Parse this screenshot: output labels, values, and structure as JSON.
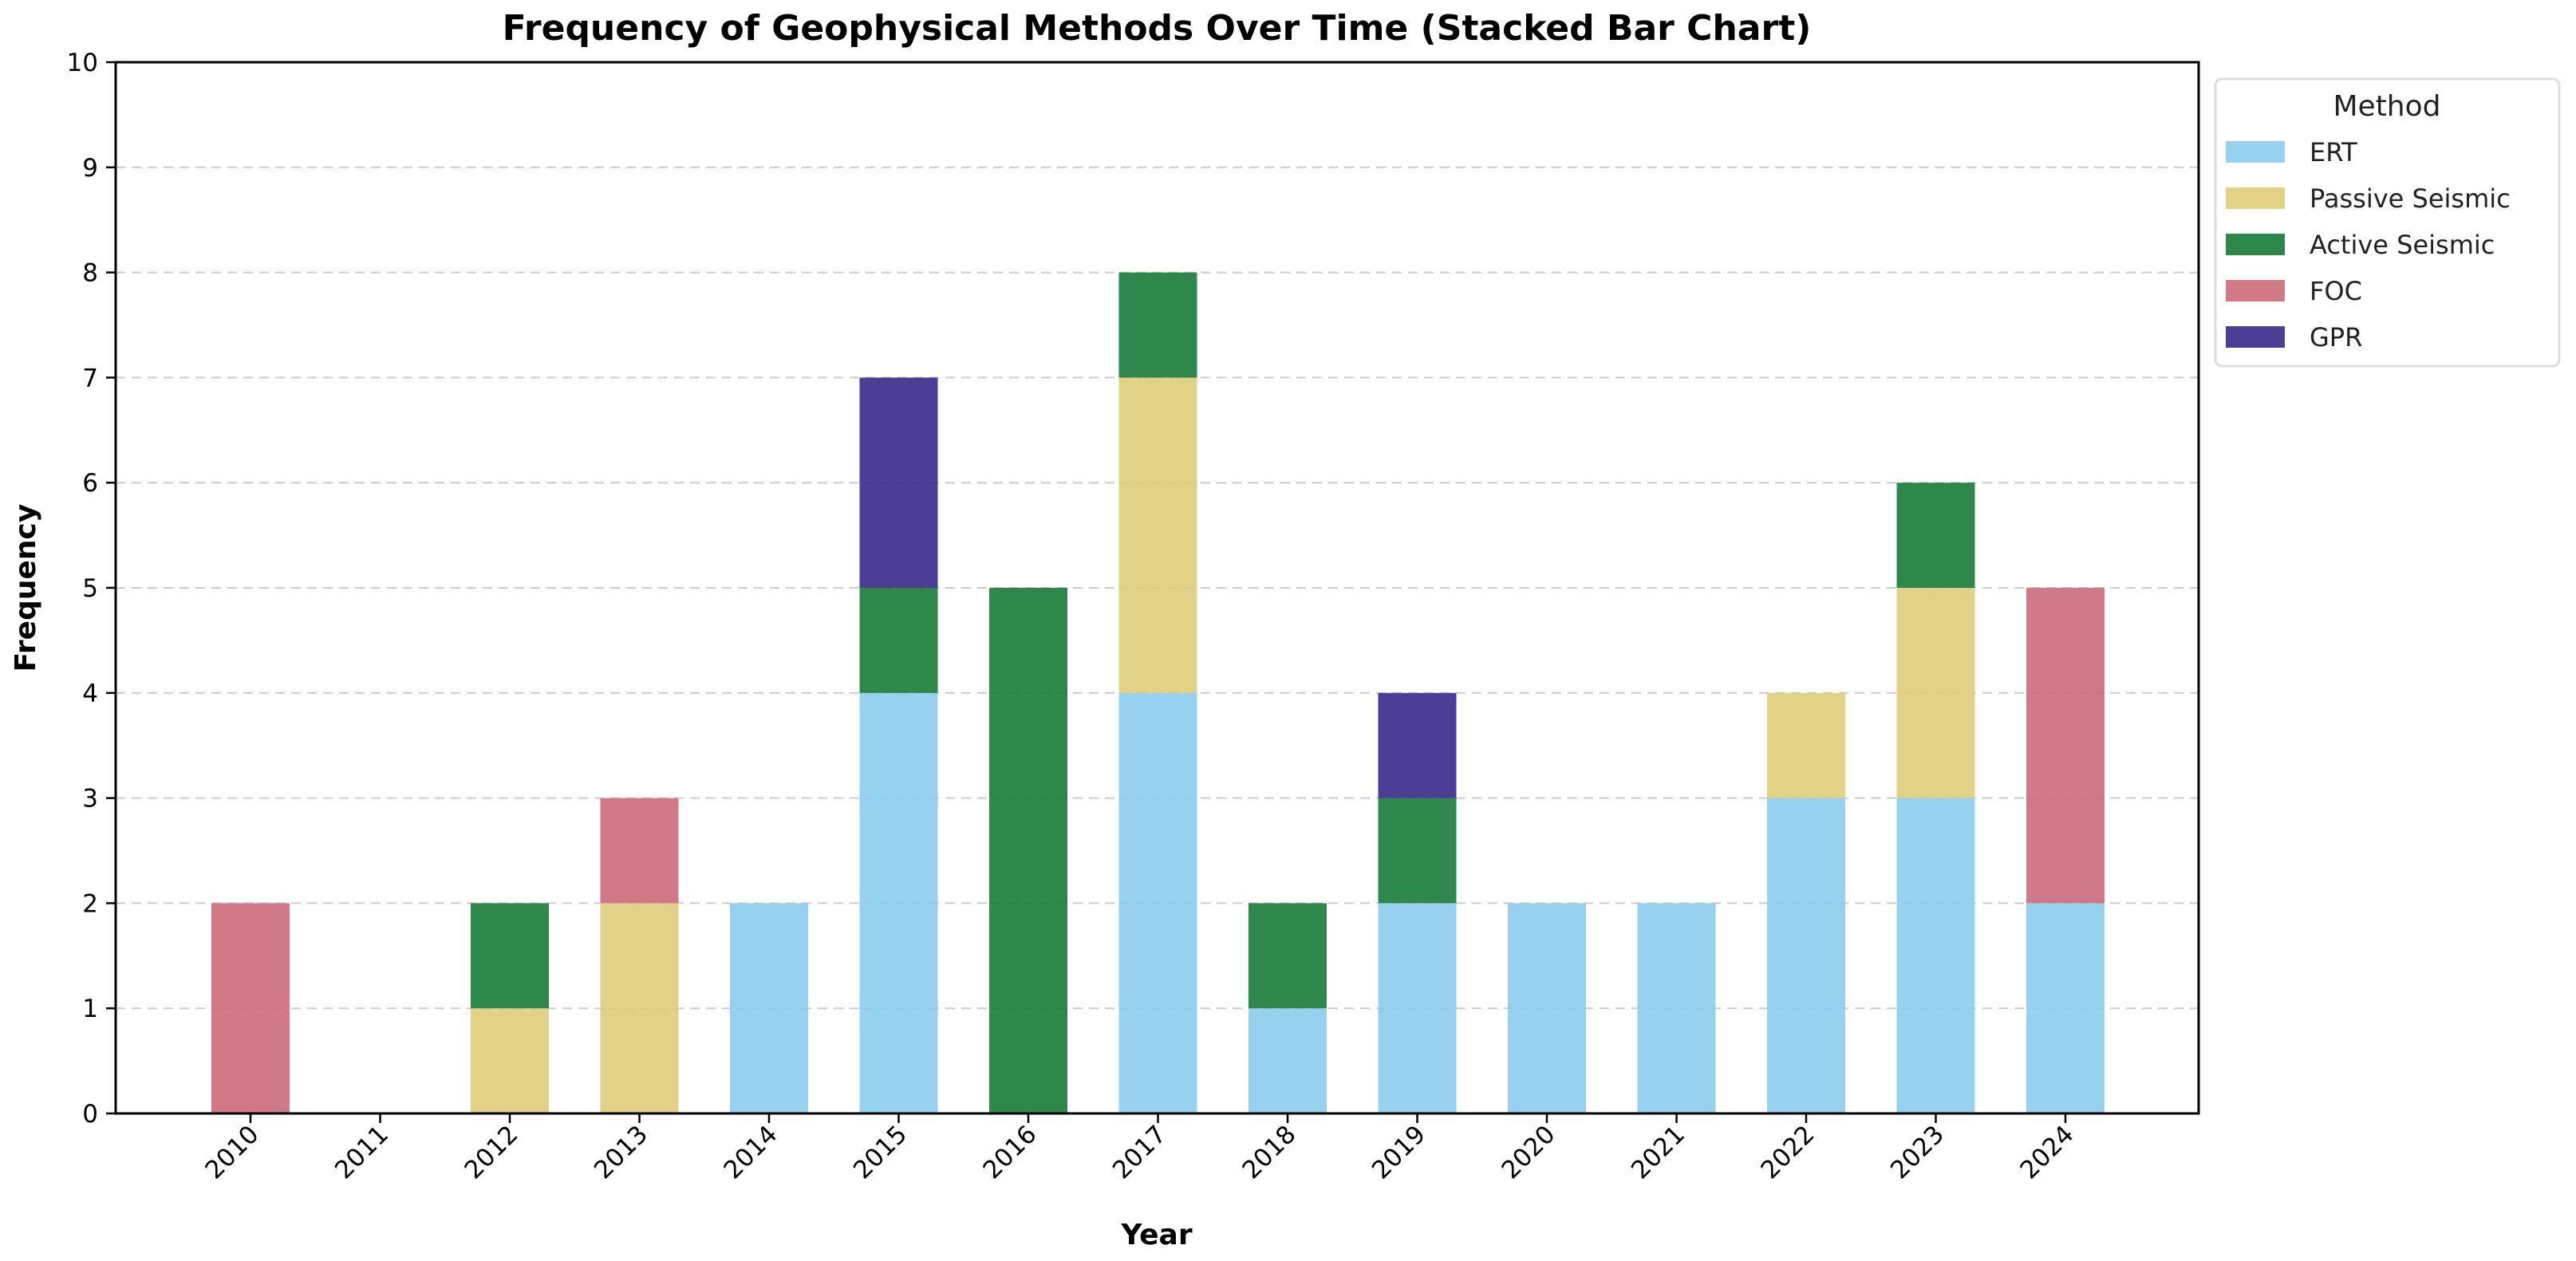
{
  "chart_data": {
    "type": "bar",
    "stacked": true,
    "title": "Frequency of Geophysical Methods Over Time (Stacked Bar Chart)",
    "xlabel": "Year",
    "ylabel": "Frequency",
    "ylim": [
      0,
      10
    ],
    "yticks": [
      "0",
      "1",
      "2",
      "3",
      "4",
      "5",
      "6",
      "7",
      "8",
      "9",
      "10"
    ],
    "grid": "horizontal dashed",
    "legend": {
      "title": "Method",
      "placement": "outside top-right"
    },
    "categories": [
      "2010",
      "2011",
      "2012",
      "2013",
      "2014",
      "2015",
      "2016",
      "2017",
      "2018",
      "2019",
      "2020",
      "2021",
      "2022",
      "2023",
      "2024"
    ],
    "series": [
      {
        "name": "ERT",
        "color": "#88CCEE",
        "values": [
          0,
          0,
          0,
          0,
          2,
          4,
          0,
          4,
          1,
          2,
          2,
          2,
          3,
          3,
          2
        ]
      },
      {
        "name": "Passive Seismic",
        "color": "#DDCC77",
        "values": [
          0,
          0,
          1,
          2,
          0,
          0,
          0,
          3,
          0,
          0,
          0,
          0,
          1,
          2,
          0
        ]
      },
      {
        "name": "Active Seismic",
        "color": "#117733",
        "values": [
          0,
          0,
          1,
          0,
          0,
          1,
          5,
          1,
          1,
          1,
          0,
          0,
          0,
          1,
          0
        ]
      },
      {
        "name": "FOC",
        "color": "#CC6677",
        "values": [
          2,
          0,
          0,
          1,
          0,
          0,
          0,
          0,
          0,
          0,
          0,
          0,
          0,
          0,
          3
        ]
      },
      {
        "name": "GPR",
        "color": "#332288",
        "values": [
          0,
          0,
          0,
          0,
          0,
          2,
          0,
          0,
          0,
          1,
          0,
          0,
          0,
          0,
          0
        ]
      }
    ]
  }
}
